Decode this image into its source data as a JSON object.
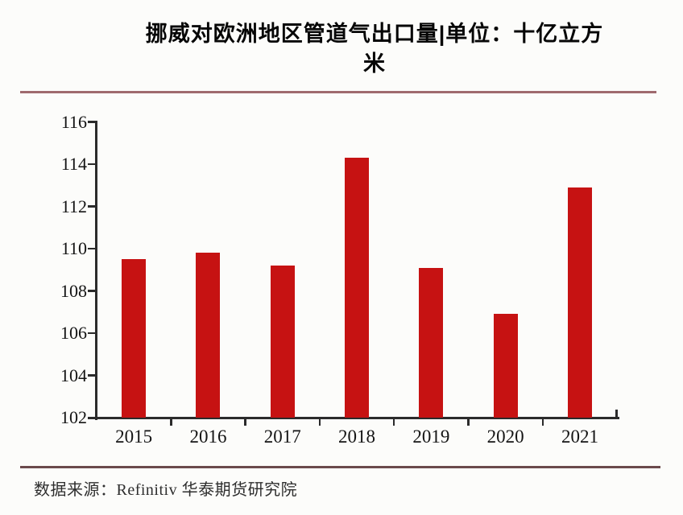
{
  "title": {
    "line1": "挪威对欧洲地区管道气出口量|单位：十亿立方",
    "line2": "米",
    "full": "挪威对欧洲地区管道气出口量|单位：十亿立方米"
  },
  "chart_data": {
    "type": "bar",
    "title": "挪威对欧洲地区管道气出口量|单位：十亿立方米",
    "categories": [
      "2015",
      "2016",
      "2017",
      "2018",
      "2019",
      "2020",
      "2021"
    ],
    "values": [
      109.5,
      109.8,
      109.2,
      114.3,
      109.1,
      106.9,
      112.9
    ],
    "xlabel": "",
    "ylabel": "",
    "ylim": [
      102,
      116
    ],
    "yticks": [
      102,
      104,
      106,
      108,
      110,
      112,
      114,
      116
    ],
    "grid": false,
    "legend": null,
    "bar_color": "#c61212"
  },
  "footer": {
    "source_label": "数据来源：Refinitiv 华泰期货研究院"
  },
  "colors": {
    "background": "#fcfcfa",
    "bar": "#c61212",
    "axis": "#2b2b2b",
    "top_rule": "#9f6a6e",
    "bottom_rule": "#6b4a4c",
    "text": "#141414"
  }
}
